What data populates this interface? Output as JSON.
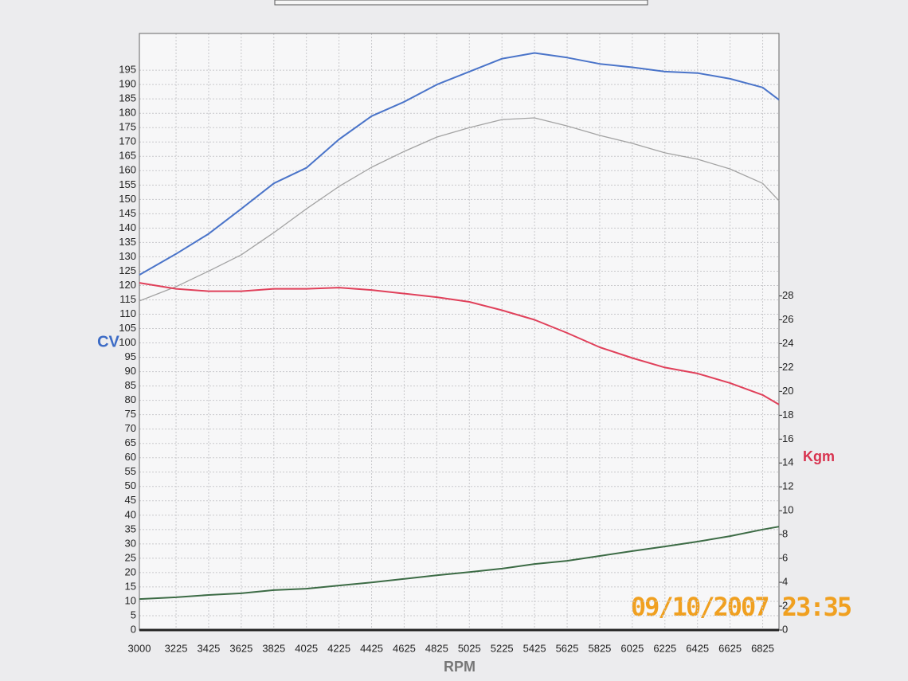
{
  "chart_data": {
    "type": "line",
    "x_label": "RPM",
    "y_label": "CV",
    "y2_label": "Kgm",
    "annotation": "09/10/2007 23:35",
    "x": [
      3000,
      3225,
      3425,
      3625,
      3825,
      4025,
      4225,
      4425,
      4625,
      4825,
      5025,
      5225,
      5425,
      5625,
      5825,
      6025,
      6225,
      6425,
      6625,
      6825,
      6925
    ],
    "series": [
      {
        "color": "#4a74c9",
        "values": [
          123.7,
          131,
          138,
          146.7,
          155.6,
          161,
          170.9,
          179,
          184,
          190,
          194.5,
          199,
          201,
          199.4,
          197.2,
          196,
          194.5,
          194,
          192,
          189,
          184.7
        ]
      },
      {
        "color": "#a3a3a3",
        "values": [
          114.6,
          119.6,
          125,
          130.7,
          138.4,
          146.7,
          154.5,
          161.2,
          166.7,
          171.7,
          175,
          177.8,
          178.4,
          175.6,
          172.3,
          169.5,
          166.2,
          164,
          160.6,
          155.6,
          149.5
        ]
      },
      {
        "color": "#e0405a",
        "axis": "y2",
        "values": [
          29.1,
          28.6,
          28.4,
          28.4,
          28.6,
          28.6,
          28.7,
          28.5,
          28.2,
          27.9,
          27.5,
          26.8,
          26,
          24.9,
          23.7,
          22.8,
          22,
          21.5,
          20.7,
          19.7,
          18.9
        ]
      },
      {
        "color": "#3c6b45",
        "values": [
          10.8,
          11.4,
          12.2,
          12.8,
          13.9,
          14.4,
          15.5,
          16.6,
          17.8,
          19.1,
          20.2,
          21.4,
          23,
          24.1,
          25.8,
          27.5,
          29.1,
          30.8,
          32.7,
          35,
          36
        ]
      }
    ],
    "xlim": [
      3000,
      6925
    ],
    "xticks": [
      3000,
      3225,
      3425,
      3625,
      3825,
      4025,
      4225,
      4425,
      4625,
      4825,
      5025,
      5225,
      5425,
      5625,
      5825,
      6025,
      6225,
      6425,
      6625,
      6825
    ],
    "ylim": [
      0,
      207.8
    ],
    "yticks": [
      0,
      5,
      10,
      15,
      20,
      25,
      30,
      35,
      40,
      45,
      50,
      55,
      60,
      65,
      70,
      75,
      80,
      85,
      90,
      95,
      100,
      105,
      110,
      115,
      120,
      125,
      130,
      135,
      140,
      145,
      150,
      155,
      160,
      165,
      170,
      175,
      180,
      185,
      190,
      195
    ],
    "y2lim": [
      0,
      50
    ],
    "y2ticks": [
      0,
      2,
      4,
      6,
      8,
      10,
      12,
      14,
      16,
      18,
      20,
      22,
      24,
      26,
      28
    ],
    "grid": true
  }
}
